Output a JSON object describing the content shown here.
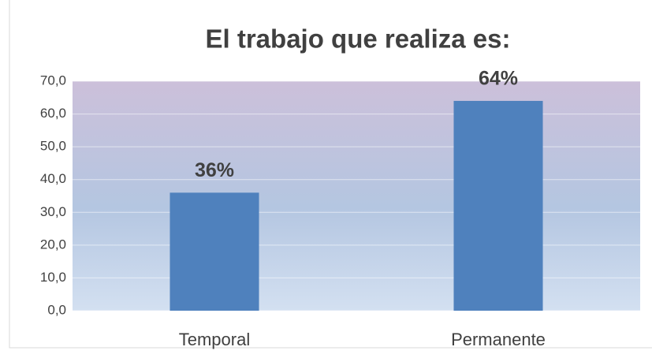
{
  "chart_data": {
    "type": "bar",
    "title": "El trabajo que realiza es:",
    "categories": [
      "Temporal",
      "Permanente"
    ],
    "values": [
      36,
      64
    ],
    "value_labels": [
      "36%",
      "64%"
    ],
    "color": "#4f81bd",
    "ylim": [
      0,
      70
    ],
    "yticks": [
      {
        "value": 0,
        "label": "0,0"
      },
      {
        "value": 10,
        "label": "10,0"
      },
      {
        "value": 20,
        "label": "20,0"
      },
      {
        "value": 30,
        "label": "30,0"
      },
      {
        "value": 40,
        "label": "40,0"
      },
      {
        "value": 50,
        "label": "50,0"
      },
      {
        "value": 60,
        "label": "60,0"
      },
      {
        "value": 70,
        "label": "70,0"
      }
    ],
    "grid": true
  }
}
